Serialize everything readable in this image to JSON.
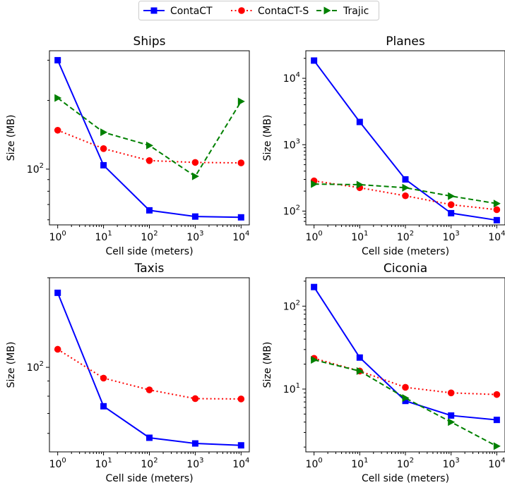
{
  "legend": {
    "entries": [
      {
        "label": "ContaCT",
        "color": "#0000ff",
        "marker": "square",
        "dash": "solid"
      },
      {
        "label": "ContaCT-S",
        "color": "#ff0000",
        "marker": "circle",
        "dash": "dotted"
      },
      {
        "label": "Trajic",
        "color": "#008000",
        "marker": "triangle-right",
        "dash": "dashed"
      }
    ]
  },
  "chart_data": [
    {
      "type": "line",
      "title": "Ships",
      "xlabel": "Cell side (meters)",
      "ylabel": "Size (MB)",
      "xscale": "log",
      "yscale": "log",
      "x": [
        1,
        10,
        100,
        1000,
        10000
      ],
      "xticks": [
        {
          "base": "10",
          "exp": "0"
        },
        {
          "base": "10",
          "exp": "1"
        },
        {
          "base": "10",
          "exp": "2"
        },
        {
          "base": "10",
          "exp": "3"
        },
        {
          "base": "10",
          "exp": "4"
        }
      ],
      "ylim": [
        57,
        330
      ],
      "yticks": [
        {
          "value": 100,
          "base": "10",
          "exp": "2"
        }
      ],
      "series": [
        {
          "name": "ContaCT",
          "values": [
            300,
            104,
            66,
            62,
            61.5
          ]
        },
        {
          "name": "ContaCT-S",
          "values": [
            148,
            123,
            109,
            107,
            106.5
          ]
        },
        {
          "name": "Trajic",
          "values": [
            205,
            145,
            127,
            93,
            198
          ]
        }
      ]
    },
    {
      "type": "line",
      "title": "Planes",
      "xlabel": "Cell side (meters)",
      "ylabel": "Size (MB)",
      "xscale": "log",
      "yscale": "log",
      "x": [
        1,
        10,
        100,
        1000,
        10000
      ],
      "xticks": [
        {
          "base": "10",
          "exp": "0"
        },
        {
          "base": "10",
          "exp": "1"
        },
        {
          "base": "10",
          "exp": "2"
        },
        {
          "base": "10",
          "exp": "3"
        },
        {
          "base": "10",
          "exp": "4"
        }
      ],
      "ylim": [
        62,
        26000
      ],
      "yticks": [
        {
          "value": 100,
          "base": "10",
          "exp": "2"
        },
        {
          "value": 1000,
          "base": "10",
          "exp": "3"
        },
        {
          "value": 10000,
          "base": "10",
          "exp": "4"
        }
      ],
      "series": [
        {
          "name": "ContaCT",
          "values": [
            18500,
            2200,
            300,
            93,
            73
          ]
        },
        {
          "name": "ContaCT-S",
          "values": [
            285,
            225,
            170,
            125,
            105
          ]
        },
        {
          "name": "Trajic",
          "values": [
            255,
            250,
            225,
            168,
            130
          ]
        }
      ]
    },
    {
      "type": "line",
      "title": "Taxis",
      "xlabel": "Cell side (meters)",
      "ylabel": "Size (MB)",
      "xscale": "log",
      "yscale": "log",
      "x": [
        1,
        10,
        100,
        1000,
        10000
      ],
      "xticks": [
        {
          "base": "10",
          "exp": "0"
        },
        {
          "base": "10",
          "exp": "1"
        },
        {
          "base": "10",
          "exp": "2"
        },
        {
          "base": "10",
          "exp": "3"
        },
        {
          "base": "10",
          "exp": "4"
        }
      ],
      "ylim": [
        52,
        200
      ],
      "yticks": [
        {
          "value": 100,
          "base": "10",
          "exp": "2"
        }
      ],
      "series": [
        {
          "name": "ContaCT",
          "values": [
            178,
            74,
            58,
            55.5,
            54.7
          ]
        },
        {
          "name": "ContaCT-S",
          "values": [
            115,
            92,
            84,
            78.5,
            78.3
          ]
        }
      ]
    },
    {
      "type": "line",
      "title": "Ciconia",
      "xlabel": "Cell side (meters)",
      "ylabel": "Size (MB)",
      "xscale": "log",
      "yscale": "log",
      "x": [
        1,
        10,
        100,
        1000,
        10000
      ],
      "xticks": [
        {
          "base": "10",
          "exp": "0"
        },
        {
          "base": "10",
          "exp": "1"
        },
        {
          "base": "10",
          "exp": "2"
        },
        {
          "base": "10",
          "exp": "3"
        },
        {
          "base": "10",
          "exp": "4"
        }
      ],
      "ylim": [
        1.75,
        220
      ],
      "yticks": [
        {
          "value": 10,
          "base": "10",
          "exp": "1"
        },
        {
          "value": 100,
          "base": "10",
          "exp": "2"
        }
      ],
      "series": [
        {
          "name": "ContaCT",
          "values": [
            170,
            24,
            7.2,
            4.8,
            4.25
          ]
        },
        {
          "name": "ContaCT-S",
          "values": [
            23.5,
            16.5,
            10.5,
            9,
            8.6
          ]
        },
        {
          "name": "Trajic",
          "values": [
            22.5,
            16.5,
            7.8,
            4,
            2.05
          ]
        }
      ]
    }
  ]
}
